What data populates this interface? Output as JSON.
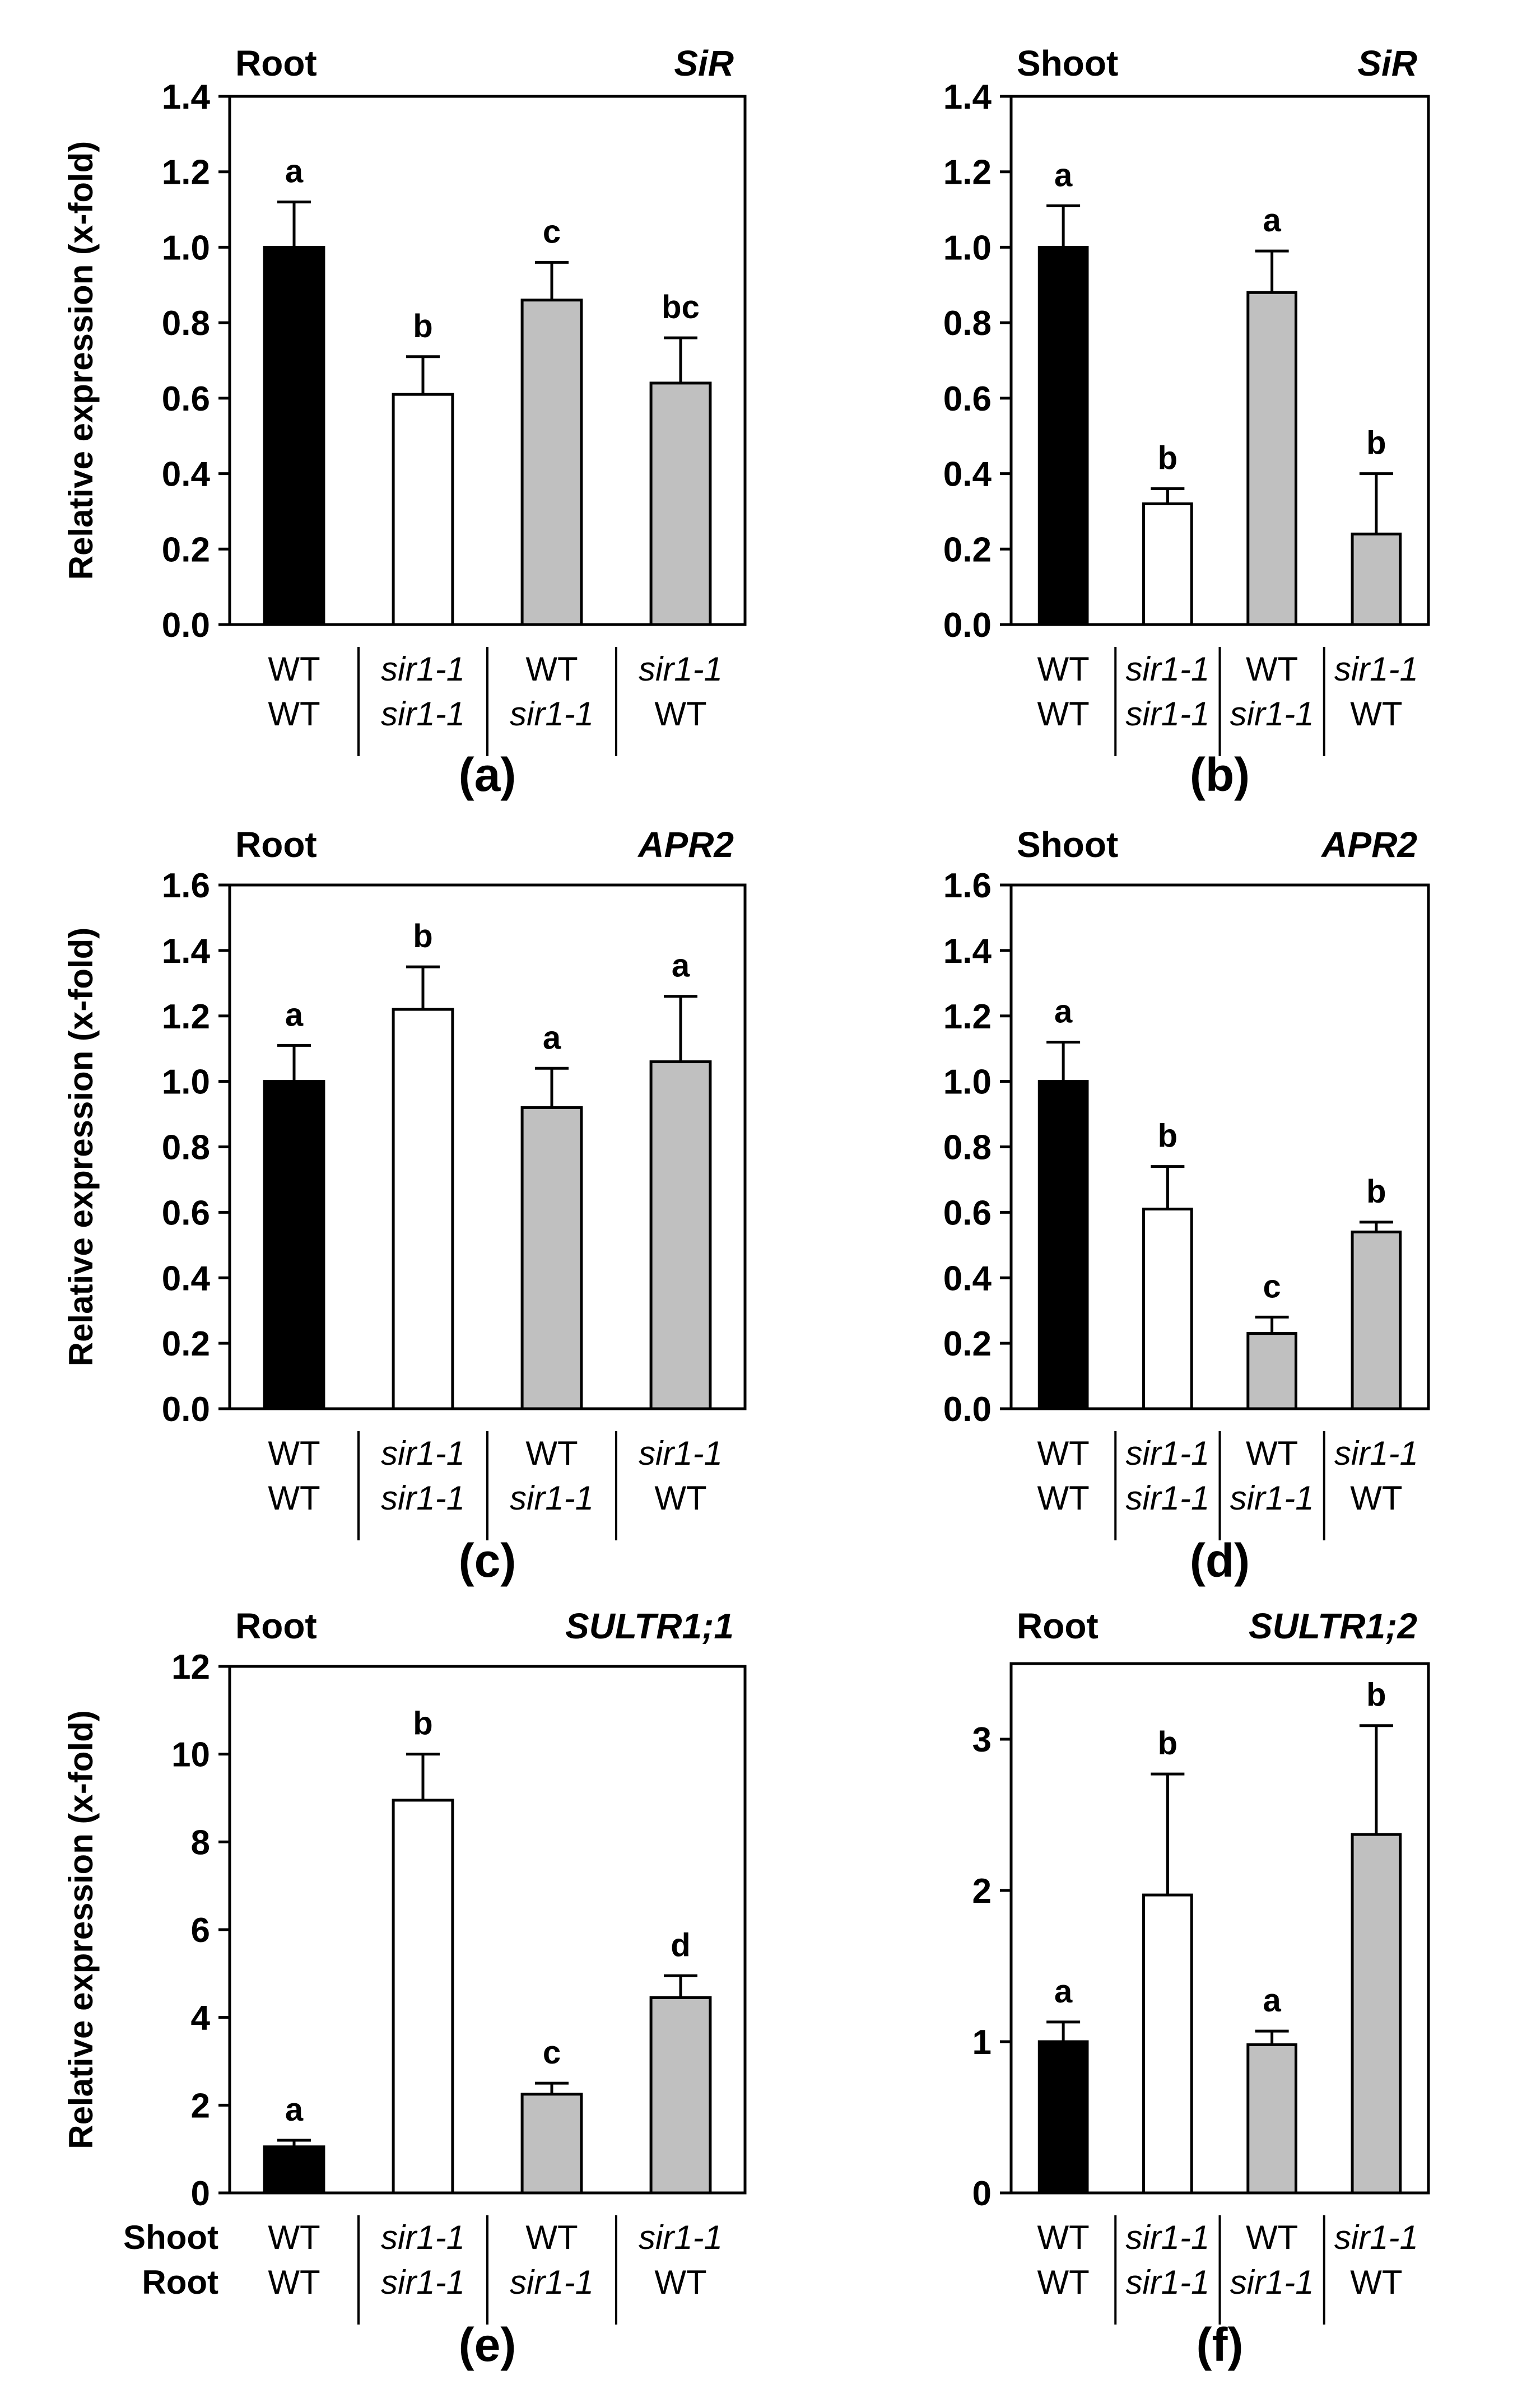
{
  "figure": {
    "shoot_row_label": "Shoot",
    "root_row_label": "Root"
  },
  "chart_data": [
    {
      "type": "bar",
      "panel": "(a)",
      "tissue": "Root",
      "gene": "SiR",
      "ylabel": "Relative expression (x-fold)",
      "ylim": [
        0,
        1.4
      ],
      "yticks": [
        "0.0",
        "0.2",
        "0.4",
        "0.6",
        "0.8",
        "1.0",
        "1.2",
        "1.4"
      ],
      "categories": [
        {
          "shoot": "WT",
          "root": "WT",
          "value": 1.0,
          "error": 0.12,
          "letter": "a",
          "fill": "#000000"
        },
        {
          "shoot": "sir1-1",
          "root": "sir1-1",
          "value": 0.61,
          "error": 0.1,
          "letter": "b",
          "fill": "#ffffff"
        },
        {
          "shoot": "WT",
          "root": "sir1-1",
          "value": 0.86,
          "error": 0.1,
          "letter": "c",
          "fill": "#c0c0c0"
        },
        {
          "shoot": "sir1-1",
          "root": "WT",
          "value": 0.64,
          "error": 0.12,
          "letter": "bc",
          "fill": "#c0c0c0"
        }
      ]
    },
    {
      "type": "bar",
      "panel": "(b)",
      "tissue": "Shoot",
      "gene": "SiR",
      "ylabel": "",
      "ylim": [
        0,
        1.4
      ],
      "yticks": [
        "0.0",
        "0.2",
        "0.4",
        "0.6",
        "0.8",
        "1.0",
        "1.2",
        "1.4"
      ],
      "categories": [
        {
          "shoot": "WT",
          "root": "WT",
          "value": 1.0,
          "error": 0.11,
          "letter": "a",
          "fill": "#000000"
        },
        {
          "shoot": "sir1-1",
          "root": "sir1-1",
          "value": 0.32,
          "error": 0.04,
          "letter": "b",
          "fill": "#ffffff"
        },
        {
          "shoot": "WT",
          "root": "sir1-1",
          "value": 0.88,
          "error": 0.11,
          "letter": "a",
          "fill": "#c0c0c0"
        },
        {
          "shoot": "sir1-1",
          "root": "WT",
          "value": 0.24,
          "error": 0.16,
          "letter": "b",
          "fill": "#c0c0c0"
        }
      ]
    },
    {
      "type": "bar",
      "panel": "(c)",
      "tissue": "Root",
      "gene": "APR2",
      "ylabel": "Relative expression (x-fold)",
      "ylim": [
        0,
        1.6
      ],
      "yticks": [
        "0.0",
        "0.2",
        "0.4",
        "0.6",
        "0.8",
        "1.0",
        "1.2",
        "1.4",
        "1.6"
      ],
      "categories": [
        {
          "shoot": "WT",
          "root": "WT",
          "value": 1.0,
          "error": 0.11,
          "letter": "a",
          "fill": "#000000"
        },
        {
          "shoot": "sir1-1",
          "root": "sir1-1",
          "value": 1.22,
          "error": 0.13,
          "letter": "b",
          "fill": "#ffffff"
        },
        {
          "shoot": "WT",
          "root": "sir1-1",
          "value": 0.92,
          "error": 0.12,
          "letter": "a",
          "fill": "#c0c0c0"
        },
        {
          "shoot": "sir1-1",
          "root": "WT",
          "value": 1.06,
          "error": 0.2,
          "letter": "a",
          "fill": "#c0c0c0"
        }
      ]
    },
    {
      "type": "bar",
      "panel": "(d)",
      "tissue": "Shoot",
      "gene": "APR2",
      "ylabel": "",
      "ylim": [
        0,
        1.6
      ],
      "yticks": [
        "0.0",
        "0.2",
        "0.4",
        "0.6",
        "0.8",
        "1.0",
        "1.2",
        "1.4",
        "1.6"
      ],
      "categories": [
        {
          "shoot": "WT",
          "root": "WT",
          "value": 1.0,
          "error": 0.12,
          "letter": "a",
          "fill": "#000000"
        },
        {
          "shoot": "sir1-1",
          "root": "sir1-1",
          "value": 0.61,
          "error": 0.13,
          "letter": "b",
          "fill": "#ffffff"
        },
        {
          "shoot": "WT",
          "root": "sir1-1",
          "value": 0.23,
          "error": 0.05,
          "letter": "c",
          "fill": "#c0c0c0"
        },
        {
          "shoot": "sir1-1",
          "root": "WT",
          "value": 0.54,
          "error": 0.03,
          "letter": "b",
          "fill": "#c0c0c0"
        }
      ]
    },
    {
      "type": "bar",
      "panel": "(e)",
      "tissue": "Root",
      "gene": "SULTR1;1",
      "ylabel": "Relative expression (x-fold)",
      "ylim": [
        0,
        12
      ],
      "yticks": [
        "0",
        "2",
        "4",
        "6",
        "8",
        "10",
        "12"
      ],
      "show_row_labels": true,
      "categories": [
        {
          "shoot": "WT",
          "root": "WT",
          "value": 1.05,
          "error": 0.15,
          "letter": "a",
          "fill": "#000000"
        },
        {
          "shoot": "sir1-1",
          "root": "sir1-1",
          "value": 8.95,
          "error": 1.05,
          "letter": "b",
          "fill": "#ffffff"
        },
        {
          "shoot": "WT",
          "root": "sir1-1",
          "value": 2.25,
          "error": 0.25,
          "letter": "c",
          "fill": "#c0c0c0"
        },
        {
          "shoot": "sir1-1",
          "root": "WT",
          "value": 4.45,
          "error": 0.5,
          "letter": "d",
          "fill": "#c0c0c0"
        }
      ]
    },
    {
      "type": "bar",
      "panel": "(f)",
      "tissue": "Root",
      "gene": "SULTR1;2",
      "ylabel": "",
      "ylim": [
        0,
        3.5
      ],
      "yticks": [
        "0",
        "1",
        "2",
        "3"
      ],
      "categories": [
        {
          "shoot": "WT",
          "root": "WT",
          "value": 1.0,
          "error": 0.13,
          "letter": "a",
          "fill": "#000000"
        },
        {
          "shoot": "sir1-1",
          "root": "sir1-1",
          "value": 1.97,
          "error": 0.8,
          "letter": "b",
          "fill": "#ffffff"
        },
        {
          "shoot": "WT",
          "root": "sir1-1",
          "value": 0.98,
          "error": 0.09,
          "letter": "a",
          "fill": "#c0c0c0"
        },
        {
          "shoot": "sir1-1",
          "root": "WT",
          "value": 2.37,
          "error": 0.72,
          "letter": "b",
          "fill": "#c0c0c0"
        }
      ]
    }
  ]
}
